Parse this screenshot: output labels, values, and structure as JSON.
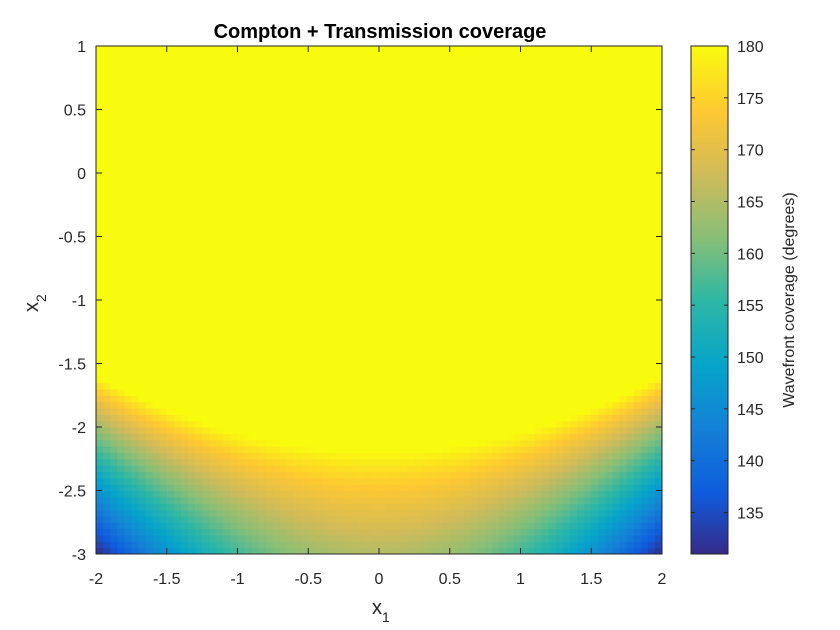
{
  "chart_data": {
    "type": "heatmap",
    "title": "Compton + Transmission coverage",
    "xlabel": "x",
    "xlabel_sub": "1",
    "ylabel": "x",
    "ylabel_sub": "2",
    "xlim": [
      -2,
      2
    ],
    "ylim": [
      -3,
      1
    ],
    "x_ticks": [
      "-2",
      "-1.5",
      "-1",
      "-0.5",
      "0",
      "0.5",
      "1",
      "1.5",
      "2"
    ],
    "y_ticks": [
      "-3",
      "-2.5",
      "-2",
      "-1.5",
      "-1",
      "-0.5",
      "0",
      "0.5",
      "1"
    ],
    "colorbar": {
      "label": "Wavefront coverage (degrees)",
      "range": [
        131,
        180
      ],
      "ticks": [
        "135",
        "140",
        "145",
        "150",
        "155",
        "160",
        "165",
        "170",
        "175",
        "180"
      ],
      "colormap": "parula"
    },
    "z_description_values": {
      "plateau_value": 180,
      "boundary_x2_at_center": -2.2,
      "boundary_x2_at_edges": -1.6,
      "min_value_corners": 131,
      "value_bottom_center": 165
    },
    "grid": false
  }
}
